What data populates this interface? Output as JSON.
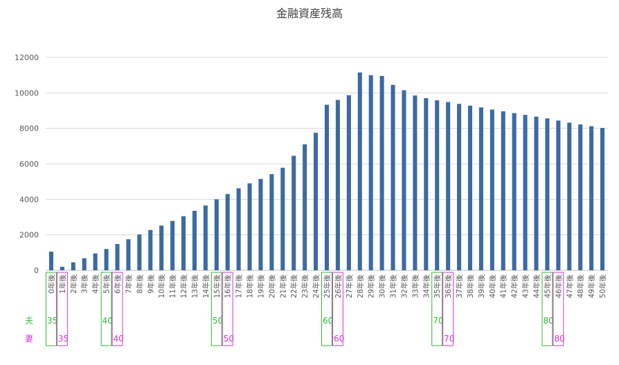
{
  "chart_data": {
    "type": "bar",
    "title": "金融資産残高",
    "xlabel": "",
    "ylabel": "",
    "ylim": [
      0,
      12000
    ],
    "yticks": [
      0,
      2000,
      4000,
      6000,
      8000,
      10000,
      12000
    ],
    "grid": true,
    "legend": "none",
    "bar_color": "#3c6aa3",
    "categories": [
      "0年後",
      "1年後",
      "2年後",
      "3年後",
      "4年後",
      "5年後",
      "6年後",
      "7年後",
      "8年後",
      "9年後",
      "10年後",
      "11年後",
      "12年後",
      "13年後",
      "14年後",
      "15年後",
      "16年後",
      "17年後",
      "18年後",
      "19年後",
      "20年後",
      "21年後",
      "22年後",
      "23年後",
      "24年後",
      "25年後",
      "26年後",
      "27年後",
      "28年後",
      "29年後",
      "30年後",
      "31年後",
      "32年後",
      "33年後",
      "34年後",
      "35年後",
      "36年後",
      "37年後",
      "38年後",
      "39年後",
      "40年後",
      "41年後",
      "42年後",
      "43年後",
      "44年後",
      "45年後",
      "46年後",
      "47年後",
      "48年後",
      "49年後",
      "50年後"
    ],
    "values": [
      1050,
      200,
      450,
      680,
      950,
      1200,
      1480,
      1750,
      2020,
      2270,
      2520,
      2780,
      3050,
      3350,
      3650,
      4000,
      4300,
      4620,
      4900,
      5150,
      5420,
      5780,
      6450,
      7100,
      7750,
      9330,
      9600,
      9870,
      11150,
      11000,
      10950,
      10450,
      10150,
      9850,
      9700,
      9580,
      9480,
      9380,
      9280,
      9180,
      9060,
      8960,
      8860,
      8760,
      8660,
      8560,
      8440,
      8320,
      8220,
      8120,
      8020
    ]
  },
  "age_rows": [
    {
      "label": "夫",
      "color": "#33b833",
      "markers": [
        {
          "index": 0,
          "age": "35"
        },
        {
          "index": 5,
          "age": "40"
        },
        {
          "index": 15,
          "age": "50"
        },
        {
          "index": 25,
          "age": "60"
        },
        {
          "index": 35,
          "age": "70"
        },
        {
          "index": 45,
          "age": "80"
        }
      ]
    },
    {
      "label": "妻",
      "color": "#d633d6",
      "markers": [
        {
          "index": 1,
          "age": "35"
        },
        {
          "index": 6,
          "age": "40"
        },
        {
          "index": 16,
          "age": "50"
        },
        {
          "index": 26,
          "age": "60"
        },
        {
          "index": 36,
          "age": "70"
        },
        {
          "index": 46,
          "age": "80"
        }
      ]
    }
  ]
}
